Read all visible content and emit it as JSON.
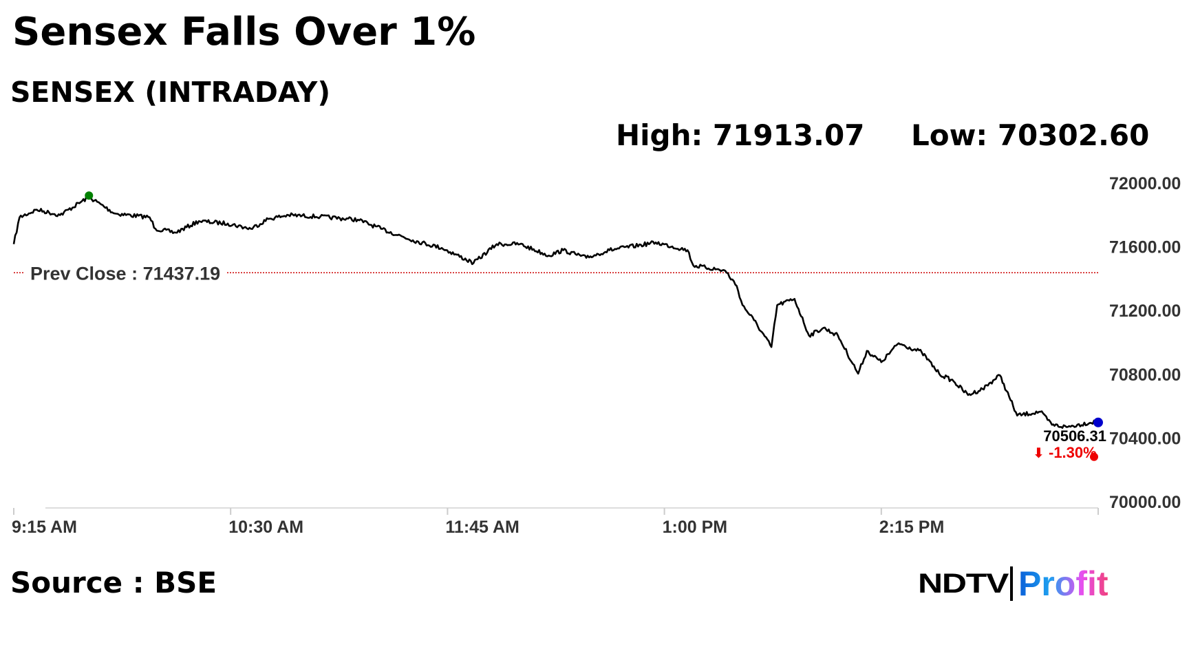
{
  "header": {
    "title": "Sensex Falls Over 1%",
    "subtitle": "SENSEX (INTRADAY)",
    "high": "High: 71913.07",
    "low": "Low: 70302.60"
  },
  "footer": {
    "source": "Source : BSE",
    "logo": {
      "brand": "NDTV",
      "product": "Profit"
    }
  },
  "colors": {
    "line": "#000000",
    "prev_close": "#cc0000",
    "high_marker": "#008000",
    "last_marker": "#0000cc",
    "change": "#ee0000"
  },
  "chart_data": {
    "type": "line",
    "title": "SENSEX (INTRADAY)",
    "x_tick_labels": [
      "9:15 AM",
      "10:30 AM",
      "11:45 AM",
      "1:00 PM",
      "2:15 PM"
    ],
    "x_ticks": [
      "09:15",
      "10:30",
      "11:45",
      "13:00",
      "14:15"
    ],
    "xlim": [
      "09:15",
      "15:30"
    ],
    "y_tick_labels": [
      "72000.00",
      "71600.00",
      "71200.00",
      "70800.00",
      "70400.00",
      "70000.00"
    ],
    "ylim": [
      70000,
      72000
    ],
    "grid": false,
    "prev_close": {
      "label": "Prev Close : 71437.19",
      "value": 71437.19
    },
    "last": {
      "value_label": "70506.31",
      "change_label": "-1.30%",
      "arrow": "down-arrow-icon",
      "value": 70506.31
    },
    "high_point": {
      "time": "09:41",
      "value": 71913.07
    },
    "series": [
      {
        "x": [
          "09:15",
          "09:17",
          "09:23",
          "09:31",
          "09:41",
          "09:50",
          "10:02",
          "10:04",
          "10:11",
          "10:19",
          "10:29",
          "10:37",
          "10:43",
          "10:50",
          "11:01",
          "11:14",
          "11:22",
          "11:33",
          "11:43",
          "11:54",
          "12:02",
          "12:10",
          "12:20",
          "12:25",
          "12:33",
          "12:41",
          "12:57",
          "13:08",
          "13:10",
          "13:21",
          "13:25",
          "13:27",
          "13:31",
          "13:37",
          "13:39",
          "13:45",
          "13:50",
          "13:55",
          "14:00",
          "14:07",
          "14:10",
          "14:15",
          "14:21",
          "14:29",
          "14:35",
          "14:40",
          "14:45",
          "14:50",
          "14:56",
          "15:02",
          "15:10",
          "15:14",
          "15:19",
          "15:30"
        ],
        "values": [
          71617,
          71785,
          71833,
          71799,
          71913,
          71809,
          71785,
          71713,
          71689,
          71761,
          71746,
          71713,
          71775,
          71799,
          71789,
          71770,
          71713,
          71641,
          71593,
          71498,
          71617,
          71617,
          71545,
          71579,
          71531,
          71579,
          71627,
          71579,
          71483,
          71450,
          71354,
          71234,
          71139,
          70971,
          71234,
          71273,
          71043,
          71091,
          71043,
          70804,
          70947,
          70876,
          70995,
          70938,
          70804,
          70756,
          70670,
          70708,
          70794,
          70541,
          70565,
          70483,
          70469,
          70506.31
        ]
      }
    ]
  }
}
